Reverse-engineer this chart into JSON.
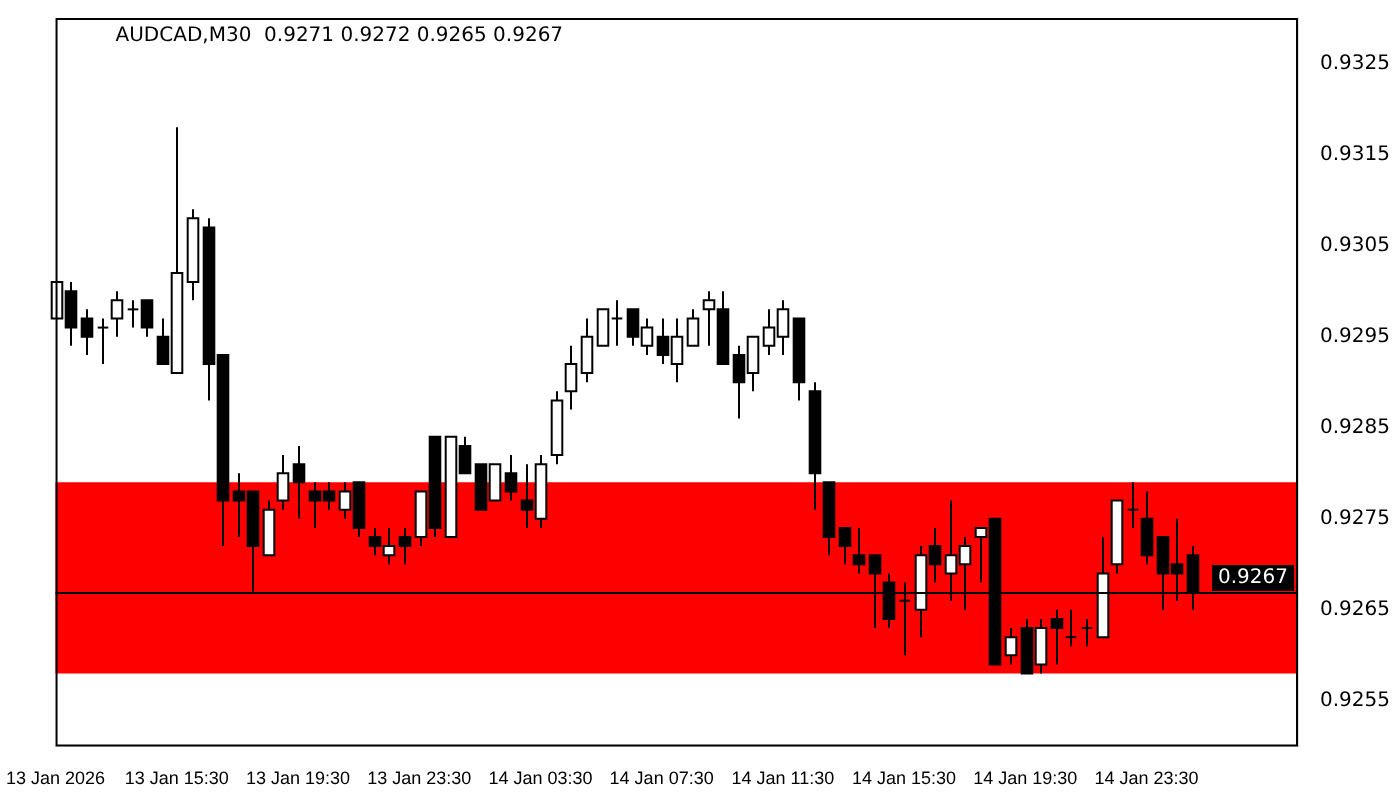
{
  "chart_data": {
    "type": "candlestick",
    "title": "AUDCAD,M30  0.9271 0.9272 0.9265 0.9267",
    "categories": [
      "13 Jan 2026",
      null,
      null,
      null,
      null,
      null,
      null,
      null,
      "13 Jan 15:30",
      null,
      null,
      null,
      null,
      null,
      null,
      null,
      "13 Jan 19:30",
      null,
      null,
      null,
      null,
      null,
      null,
      null,
      "13 Jan 23:30",
      null,
      null,
      null,
      null,
      null,
      null,
      null,
      "14 Jan 03:30",
      null,
      null,
      null,
      null,
      null,
      null,
      null,
      "14 Jan 07:30",
      null,
      null,
      null,
      null,
      null,
      null,
      null,
      "14 Jan 11:30",
      null,
      null,
      null,
      null,
      null,
      null,
      null,
      "14 Jan 15:30",
      null,
      null,
      null,
      null,
      null,
      null,
      null,
      "14 Jan 19:30",
      null,
      null,
      null,
      null,
      null,
      null,
      null,
      "14 Jan 23:30",
      null,
      null,
      null,
      null,
      null,
      null,
      null,
      null,
      null,
      null
    ],
    "ohlc": [
      [
        0.9297,
        0.9301,
        0.9297,
        0.9301
      ],
      [
        0.93,
        0.9301,
        0.9294,
        0.9296
      ],
      [
        0.9297,
        0.9298,
        0.9293,
        0.9295
      ],
      [
        0.9296,
        0.9297,
        0.9292,
        0.9296
      ],
      [
        0.9297,
        0.93,
        0.9295,
        0.9299
      ],
      [
        0.9298,
        0.9299,
        0.9296,
        0.9298
      ],
      [
        0.9299,
        0.9299,
        0.9295,
        0.9296
      ],
      [
        0.9295,
        0.9297,
        0.9292,
        0.9292
      ],
      [
        0.9291,
        0.9318,
        0.9291,
        0.9302
      ],
      [
        0.9301,
        0.9309,
        0.9299,
        0.9308
      ],
      [
        0.9307,
        0.9308,
        0.9288,
        0.9292
      ],
      [
        0.9293,
        0.9293,
        0.9272,
        0.9277
      ],
      [
        0.9278,
        0.928,
        0.9273,
        0.9277
      ],
      [
        0.9278,
        0.9278,
        0.9267,
        0.9272
      ],
      [
        0.9271,
        0.9277,
        0.9271,
        0.9276
      ],
      [
        0.9277,
        0.9282,
        0.9276,
        0.928
      ],
      [
        0.9281,
        0.9283,
        0.9275,
        0.9279
      ],
      [
        0.9278,
        0.9279,
        0.9274,
        0.9277
      ],
      [
        0.9278,
        0.9279,
        0.9276,
        0.9277
      ],
      [
        0.9276,
        0.9279,
        0.9275,
        0.9278
      ],
      [
        0.9279,
        0.9279,
        0.9273,
        0.9274
      ],
      [
        0.9273,
        0.9274,
        0.9271,
        0.9272
      ],
      [
        0.9271,
        0.9274,
        0.927,
        0.9272
      ],
      [
        0.9273,
        0.9274,
        0.927,
        0.9272
      ],
      [
        0.9273,
        0.9278,
        0.9272,
        0.9278
      ],
      [
        0.9284,
        0.9284,
        0.9273,
        0.9274
      ],
      [
        0.9273,
        0.9284,
        0.9273,
        0.9284
      ],
      [
        0.9283,
        0.9284,
        0.928,
        0.928
      ],
      [
        0.9281,
        0.9281,
        0.9276,
        0.9276
      ],
      [
        0.9277,
        0.9281,
        0.9277,
        0.9281
      ],
      [
        0.928,
        0.9282,
        0.9277,
        0.9278
      ],
      [
        0.9277,
        0.9281,
        0.9274,
        0.9276
      ],
      [
        0.9275,
        0.9282,
        0.9274,
        0.9281
      ],
      [
        0.9282,
        0.9289,
        0.9281,
        0.9288
      ],
      [
        0.9289,
        0.9294,
        0.9287,
        0.9292
      ],
      [
        0.9291,
        0.9297,
        0.929,
        0.9295
      ],
      [
        0.9294,
        0.9298,
        0.9294,
        0.9298
      ],
      [
        0.9297,
        0.9299,
        0.9294,
        0.9297
      ],
      [
        0.9298,
        0.9298,
        0.9294,
        0.9295
      ],
      [
        0.9294,
        0.9297,
        0.9293,
        0.9296
      ],
      [
        0.9295,
        0.9297,
        0.9292,
        0.9293
      ],
      [
        0.9292,
        0.9297,
        0.929,
        0.9295
      ],
      [
        0.9294,
        0.9298,
        0.9294,
        0.9297
      ],
      [
        0.9298,
        0.93,
        0.9294,
        0.9299
      ],
      [
        0.9298,
        0.93,
        0.9292,
        0.9292
      ],
      [
        0.9293,
        0.9294,
        0.9286,
        0.929
      ],
      [
        0.9291,
        0.9295,
        0.9289,
        0.9295
      ],
      [
        0.9294,
        0.9298,
        0.9293,
        0.9296
      ],
      [
        0.9295,
        0.9299,
        0.9293,
        0.9298
      ],
      [
        0.9297,
        0.9297,
        0.9288,
        0.929
      ],
      [
        0.9289,
        0.929,
        0.9276,
        0.928
      ],
      [
        0.9279,
        0.9279,
        0.9271,
        0.9273
      ],
      [
        0.9274,
        0.9274,
        0.927,
        0.9272
      ],
      [
        0.9271,
        0.9274,
        0.9269,
        0.927
      ],
      [
        0.9271,
        0.9271,
        0.9263,
        0.9269
      ],
      [
        0.9268,
        0.9269,
        0.9263,
        0.9264
      ],
      [
        0.9266,
        0.9268,
        0.926,
        0.9266
      ],
      [
        0.9265,
        0.9272,
        0.9262,
        0.9271
      ],
      [
        0.9272,
        0.9274,
        0.9268,
        0.927
      ],
      [
        0.9269,
        0.9277,
        0.9266,
        0.9271
      ],
      [
        0.927,
        0.9273,
        0.9265,
        0.9272
      ],
      [
        0.9273,
        0.9274,
        0.9268,
        0.9274
      ],
      [
        0.9275,
        0.9275,
        0.9259,
        0.9259
      ],
      [
        0.926,
        0.9263,
        0.9259,
        0.9262
      ],
      [
        0.9263,
        0.9264,
        0.9258,
        0.9258
      ],
      [
        0.9259,
        0.9264,
        0.9258,
        0.9263
      ],
      [
        0.9264,
        0.9265,
        0.9259,
        0.9263
      ],
      [
        0.9262,
        0.9265,
        0.9261,
        0.9262
      ],
      [
        0.9263,
        0.9264,
        0.9261,
        0.9263
      ],
      [
        0.9262,
        0.9273,
        0.9262,
        0.9269
      ],
      [
        0.927,
        0.9277,
        0.9269,
        0.9277
      ],
      [
        0.9276,
        0.9279,
        0.9274,
        0.9276
      ],
      [
        0.9275,
        0.9278,
        0.927,
        0.9271
      ],
      [
        0.9273,
        0.9273,
        0.9265,
        0.9269
      ],
      [
        0.927,
        0.9275,
        0.9266,
        0.9269
      ],
      [
        0.9271,
        0.9272,
        0.9265,
        0.9267
      ],
      null,
      null,
      null,
      null,
      null,
      null,
      null
    ],
    "ylim": [
      0.925,
      0.933
    ],
    "yticks": [
      0.9255,
      0.9265,
      0.9275,
      0.9285,
      0.9295,
      0.9305,
      0.9315,
      0.9325
    ],
    "ref_lines": [
      {
        "axis": "y",
        "value": 0.9267,
        "label": "0.9267",
        "color": "#000000"
      }
    ],
    "bands": [
      {
        "axis": "y",
        "from": 0.9258,
        "to": 0.9279,
        "color": "#ff0000"
      }
    ],
    "grid": false,
    "legend": false
  }
}
